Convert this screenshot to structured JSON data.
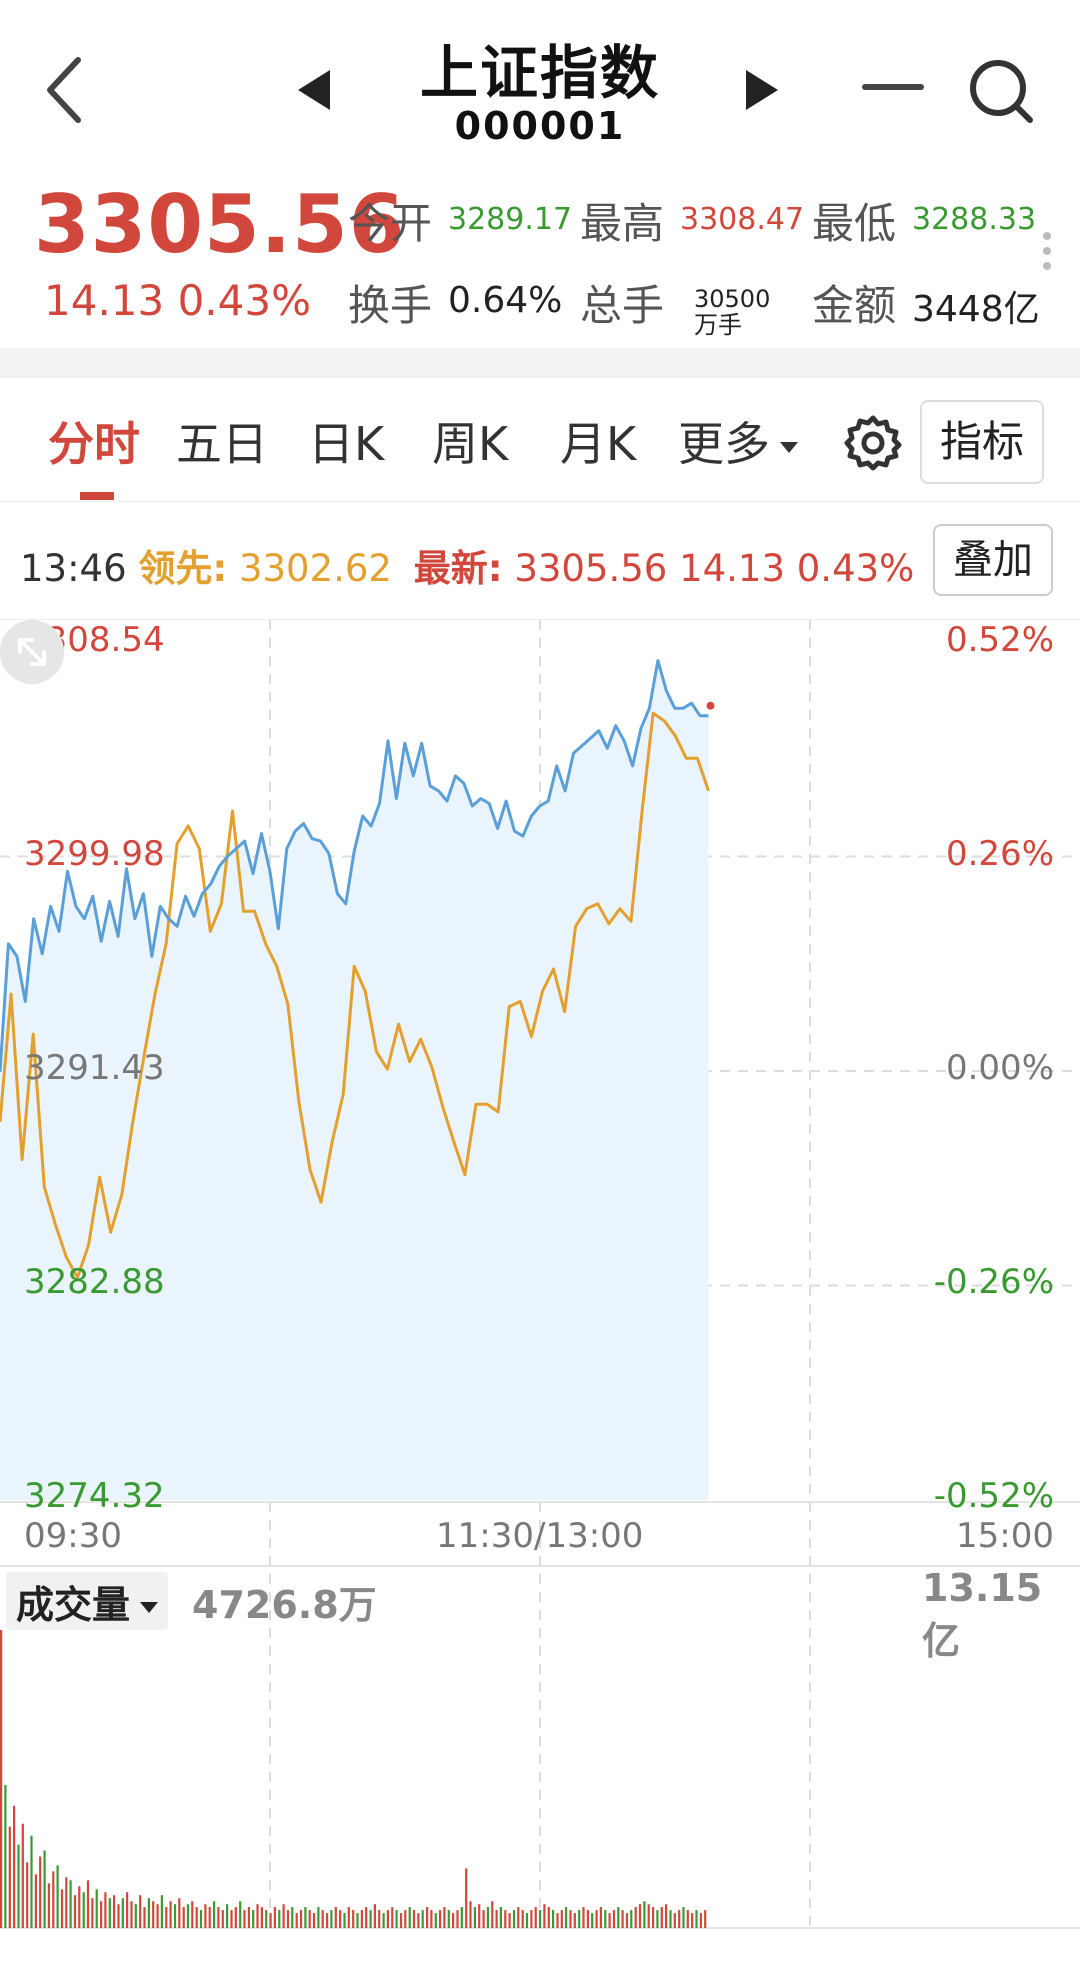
{
  "header": {
    "title": "上证指数",
    "code": "000001"
  },
  "quote": {
    "price": "3305.56",
    "change": "14.13 0.43%",
    "stats": [
      {
        "label": "今开",
        "value": "3289.17",
        "color": "green"
      },
      {
        "label": "最高",
        "value": "3308.47",
        "color": "red"
      },
      {
        "label": "最低",
        "value": "3288.33",
        "color": "green"
      },
      {
        "label": "换手",
        "value": "0.64%",
        "color": "dark"
      },
      {
        "label": "总手",
        "value": "30500万手",
        "color": "dark"
      },
      {
        "label": "金额",
        "value": "3448亿",
        "color": "dark"
      }
    ]
  },
  "tabs": {
    "items": [
      "分时",
      "五日",
      "日K",
      "周K",
      "月K",
      "更多"
    ],
    "active": "分时",
    "indicator_label": "指标"
  },
  "infobar": {
    "time": "13:46",
    "lead_label": "领先:",
    "lead_value": "3302.62",
    "latest_label": "最新:",
    "latest_value": "3305.56 14.13 0.43%",
    "overlay_label": "叠加"
  },
  "colors": {
    "up": "#d2473b",
    "down": "#3a9a32",
    "price_line": "#5b9fd8",
    "lead_line": "#e3a02f",
    "fill": "#eaf4fc"
  },
  "chart_data": {
    "type": "line",
    "y_left_labels": [
      "3308.54",
      "3299.98",
      "3291.43",
      "3282.88",
      "3274.32"
    ],
    "y_right_labels": [
      "0.52%",
      "0.26%",
      "0.00%",
      "-0.26%",
      "-0.52%"
    ],
    "ylim": [
      3274.32,
      3308.54
    ],
    "x_labels": [
      "09:30",
      "11:30/13:00",
      "15:00"
    ],
    "grid": true,
    "series": [
      {
        "name": "最新",
        "values": [
          3291.4,
          3296.5,
          3296.0,
          3294.2,
          3297.5,
          3296.1,
          3298.0,
          3297.0,
          3299.4,
          3298.0,
          3297.5,
          3298.4,
          3296.6,
          3298.2,
          3296.8,
          3299.5,
          3297.5,
          3298.5,
          3296.0,
          3298.0,
          3297.5,
          3297.2,
          3298.4,
          3297.6,
          3298.5,
          3298.9,
          3299.6,
          3300.0,
          3300.3,
          3300.6,
          3299.3,
          3300.9,
          3299.4,
          3297.1,
          3300.3,
          3301.0,
          3301.3,
          3300.7,
          3300.6,
          3300.1,
          3298.5,
          3298.1,
          3300.2,
          3301.6,
          3301.2,
          3302.1,
          3304.6,
          3302.3,
          3304.5,
          3303.2,
          3304.5,
          3302.8,
          3302.6,
          3302.2,
          3303.2,
          3302.9,
          3302.0,
          3302.3,
          3302.1,
          3301.1,
          3302.2,
          3301.0,
          3300.8,
          3301.6,
          3302.0,
          3302.2,
          3303.6,
          3302.6,
          3304.1,
          3304.4,
          3304.7,
          3305.0,
          3304.3,
          3305.2,
          3304.6,
          3303.6,
          3305.1,
          3305.9,
          3307.8,
          3306.6,
          3305.9,
          3305.9,
          3306.1,
          3305.6,
          3305.6
        ],
        "x_fraction_end": 0.656
      },
      {
        "name": "领先",
        "values": [
          3289.4,
          3294.5,
          3287.9,
          3292.9,
          3286.8,
          3285.3,
          3284.0,
          3283.2,
          3284.5,
          3287.2,
          3285.0,
          3286.5,
          3289.4,
          3292.0,
          3294.5,
          3296.5,
          3300.5,
          3301.2,
          3300.3,
          3297.0,
          3298.1,
          3301.8,
          3297.8,
          3297.8,
          3296.5,
          3295.6,
          3294.1,
          3290.2,
          3287.5,
          3286.2,
          3288.6,
          3290.5,
          3295.6,
          3294.6,
          3292.2,
          3291.5,
          3293.3,
          3291.8,
          3292.7,
          3291.6,
          3290.0,
          3288.6,
          3287.3,
          3290.1,
          3290.1,
          3289.8,
          3294.0,
          3294.2,
          3292.8,
          3294.6,
          3295.5,
          3293.8,
          3297.2,
          3297.9,
          3298.1,
          3297.3,
          3297.9,
          3297.4,
          3301.8,
          3305.7,
          3305.4,
          3304.8,
          3303.9,
          3303.9,
          3302.6
        ],
        "x_fraction_end": 0.656
      }
    ],
    "volume": {
      "label": "成交量",
      "current": "4726.8万",
      "max_label": "13.15亿",
      "values": [
        1.0,
        0.48,
        0.34,
        0.41,
        0.28,
        0.35,
        0.22,
        0.31,
        0.18,
        0.24,
        0.26,
        0.15,
        0.19,
        0.21,
        0.13,
        0.17,
        0.16,
        0.11,
        0.14,
        0.12,
        0.16,
        0.1,
        0.13,
        0.09,
        0.12,
        0.1,
        0.11,
        0.08,
        0.1,
        0.12,
        0.09,
        0.08,
        0.11,
        0.07,
        0.1,
        0.09,
        0.08,
        0.11,
        0.07,
        0.09,
        0.08,
        0.1,
        0.07,
        0.08,
        0.09,
        0.07,
        0.06,
        0.08,
        0.07,
        0.09,
        0.07,
        0.06,
        0.08,
        0.06,
        0.07,
        0.09,
        0.06,
        0.07,
        0.06,
        0.08,
        0.07,
        0.06,
        0.05,
        0.07,
        0.06,
        0.08,
        0.06,
        0.07,
        0.05,
        0.06,
        0.07,
        0.06,
        0.05,
        0.07,
        0.06,
        0.05,
        0.06,
        0.07,
        0.06,
        0.05,
        0.07,
        0.06,
        0.05,
        0.06,
        0.07,
        0.06,
        0.08,
        0.06,
        0.05,
        0.06,
        0.07,
        0.06,
        0.05,
        0.06,
        0.07,
        0.06,
        0.05,
        0.06,
        0.07,
        0.06,
        0.05,
        0.06,
        0.07,
        0.06,
        0.05,
        0.06,
        0.07,
        0.2,
        0.09,
        0.07,
        0.08,
        0.06,
        0.07,
        0.09,
        0.06,
        0.07,
        0.06,
        0.05,
        0.06,
        0.07,
        0.06,
        0.05,
        0.06,
        0.07,
        0.06,
        0.08,
        0.07,
        0.06,
        0.05,
        0.06,
        0.07,
        0.06,
        0.05,
        0.06,
        0.07,
        0.06,
        0.05,
        0.06,
        0.07,
        0.06,
        0.05,
        0.06,
        0.07,
        0.06,
        0.05,
        0.06,
        0.07,
        0.08,
        0.09,
        0.08,
        0.07,
        0.06,
        0.07,
        0.08,
        0.06,
        0.05,
        0.06,
        0.07,
        0.06,
        0.05,
        0.06,
        0.05,
        0.06
      ],
      "x_fraction_end": 0.656
    }
  }
}
